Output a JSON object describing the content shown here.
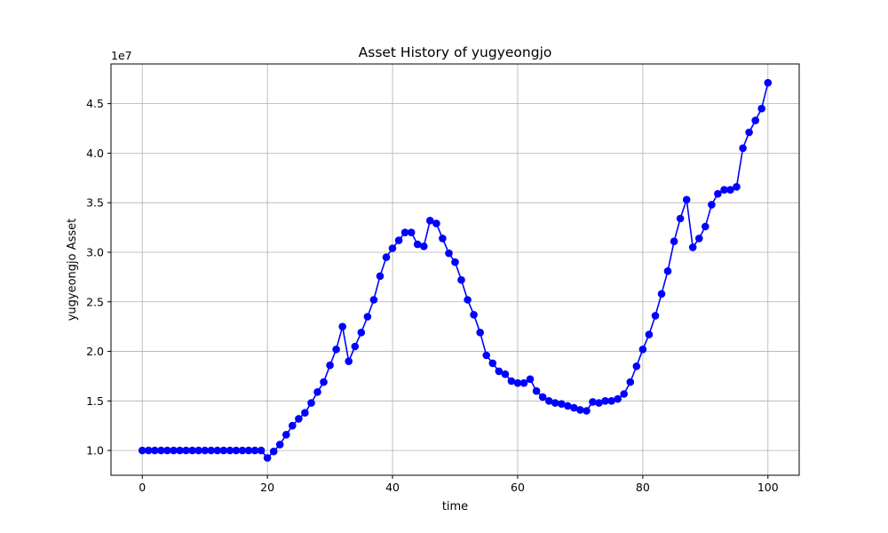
{
  "chart_data": {
    "type": "line",
    "title": "Asset History of yugyeongjo",
    "xlabel": "time",
    "ylabel": "yugyeongjo Asset",
    "offset_text": "1e7",
    "xlim": [
      -5,
      105
    ],
    "ylim": [
      7500000,
      49000000
    ],
    "x_ticks": [
      0,
      20,
      40,
      60,
      80,
      100
    ],
    "y_ticks": [
      10000000,
      15000000,
      20000000,
      25000000,
      30000000,
      35000000,
      40000000,
      45000000
    ],
    "y_tick_labels": [
      "1.0",
      "1.5",
      "2.0",
      "2.5",
      "3.0",
      "3.5",
      "4.0",
      "4.5"
    ],
    "grid": true,
    "series": [
      {
        "color": "#0000ff",
        "marker": "circle",
        "x": [
          0,
          1,
          2,
          3,
          4,
          5,
          6,
          7,
          8,
          9,
          10,
          11,
          12,
          13,
          14,
          15,
          16,
          17,
          18,
          19,
          20,
          21,
          22,
          23,
          24,
          25,
          26,
          27,
          28,
          29,
          30,
          31,
          32,
          33,
          34,
          35,
          36,
          37,
          38,
          39,
          40,
          41,
          42,
          43,
          44,
          45,
          46,
          47,
          48,
          49,
          50,
          51,
          52,
          53,
          54,
          55,
          56,
          57,
          58,
          59,
          60,
          61,
          62,
          63,
          64,
          65,
          66,
          67,
          68,
          69,
          70,
          71,
          72,
          73,
          74,
          75,
          76,
          77,
          78,
          79,
          80,
          81,
          82,
          83,
          84,
          85,
          86,
          87,
          88,
          89,
          90,
          91,
          92,
          93,
          94,
          95,
          96,
          97,
          98,
          99,
          100
        ],
        "values": [
          10000000,
          10000000,
          10000000,
          10000000,
          10000000,
          10000000,
          10000000,
          10000000,
          10000000,
          10000000,
          10000000,
          10000000,
          10000000,
          10000000,
          10000000,
          10000000,
          10000000,
          10000000,
          10000000,
          10000000,
          9250000,
          9900000,
          10600000,
          11600000,
          12500000,
          13200000,
          13800000,
          14800000,
          15900000,
          16900000,
          18600000,
          20200000,
          22500000,
          19000000,
          20500000,
          21900000,
          23500000,
          25200000,
          27600000,
          29500000,
          30400000,
          31200000,
          32000000,
          32000000,
          30800000,
          30600000,
          33200000,
          32900000,
          31400000,
          29900000,
          29000000,
          27200000,
          25200000,
          23700000,
          21900000,
          19600000,
          18800000,
          18000000,
          17700000,
          17000000,
          16800000,
          16800000,
          17200000,
          16000000,
          15400000,
          15000000,
          14800000,
          14700000,
          14500000,
          14300000,
          14100000,
          14000000,
          14900000,
          14800000,
          15000000,
          15000000,
          15200000,
          15700000,
          16900000,
          18500000,
          20200000,
          21700000,
          23600000,
          25800000,
          28100000,
          31100000,
          33400000,
          35300000,
          30500000,
          31400000,
          32600000,
          34800000,
          35900000,
          36300000,
          36300000,
          36600000,
          40500000,
          42100000,
          43300000,
          44500000,
          47100000
        ]
      }
    ]
  }
}
